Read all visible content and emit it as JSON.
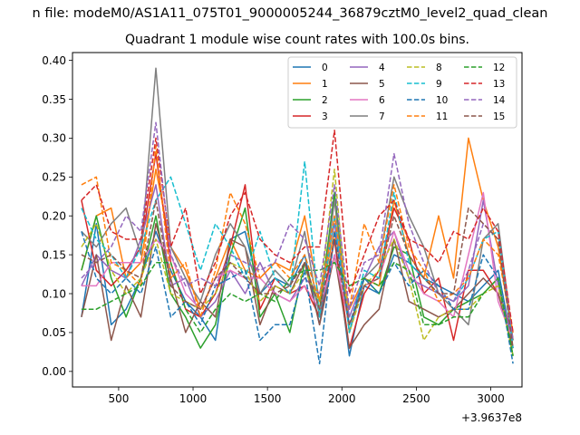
{
  "chart_data": {
    "type": "line",
    "suptitle": "n file: modeM0/AS1A11_075T01_9000005244_36879cztM0_level2_quad_clean",
    "title": "Quadrant 1 module wise count rates with 100.0s bins.",
    "xlabel": "",
    "ylabel": "",
    "x_offset_label": "+3.9637e8",
    "xlim": [
      190,
      3210
    ],
    "ylim": [
      -0.02,
      0.41
    ],
    "xticks": [
      500,
      1000,
      1500,
      2000,
      2500,
      3000
    ],
    "xtick_labels": [
      "500",
      "1000",
      "1500",
      "2000",
      "2500",
      "3000"
    ],
    "yticks": [
      0.0,
      0.05,
      0.1,
      0.15,
      0.2,
      0.25,
      0.3,
      0.35,
      0.4
    ],
    "ytick_labels": [
      "0.00",
      "0.05",
      "0.10",
      "0.15",
      "0.20",
      "0.25",
      "0.30",
      "0.35",
      "0.40"
    ],
    "legend_position": "top-right",
    "legend_ncol": 4,
    "x": [
      250,
      350,
      450,
      550,
      650,
      750,
      850,
      950,
      1050,
      1150,
      1250,
      1350,
      1450,
      1550,
      1650,
      1750,
      1850,
      1950,
      2050,
      2150,
      2250,
      2350,
      2450,
      2550,
      2650,
      2750,
      2850,
      2950,
      3050,
      3150
    ],
    "series": [
      {
        "name": "0",
        "color": "#1f77b4",
        "dash": "solid",
        "values": [
          0.07,
          0.19,
          0.06,
          0.08,
          0.12,
          0.18,
          0.13,
          0.09,
          0.07,
          0.04,
          0.17,
          0.18,
          0.1,
          0.12,
          0.11,
          0.15,
          0.06,
          0.17,
          0.02,
          0.11,
          0.1,
          0.15,
          0.14,
          0.12,
          0.11,
          0.1,
          0.09,
          0.11,
          0.13,
          0.03
        ]
      },
      {
        "name": "1",
        "color": "#ff7f0e",
        "dash": "solid",
        "values": [
          0.13,
          0.2,
          0.21,
          0.12,
          0.14,
          0.26,
          0.16,
          0.13,
          0.08,
          0.12,
          0.17,
          0.13,
          0.12,
          0.14,
          0.13,
          0.2,
          0.09,
          0.18,
          0.08,
          0.12,
          0.11,
          0.22,
          0.15,
          0.12,
          0.2,
          0.12,
          0.3,
          0.22,
          0.16,
          0.04
        ]
      },
      {
        "name": "2",
        "color": "#2ca02c",
        "dash": "solid",
        "values": [
          0.13,
          0.2,
          0.12,
          0.07,
          0.12,
          0.2,
          0.1,
          0.07,
          0.03,
          0.06,
          0.15,
          0.21,
          0.07,
          0.1,
          0.05,
          0.14,
          0.08,
          0.23,
          0.05,
          0.12,
          0.1,
          0.16,
          0.15,
          0.07,
          0.06,
          0.08,
          0.09,
          0.1,
          0.12,
          0.02
        ]
      },
      {
        "name": "3",
        "color": "#d62728",
        "dash": "solid",
        "values": [
          0.22,
          0.13,
          0.11,
          0.13,
          0.16,
          0.28,
          0.14,
          0.08,
          0.07,
          0.1,
          0.16,
          0.24,
          0.08,
          0.12,
          0.1,
          0.11,
          0.07,
          0.17,
          0.03,
          0.1,
          0.13,
          0.21,
          0.17,
          0.1,
          0.12,
          0.04,
          0.13,
          0.13,
          0.1,
          0.05
        ]
      },
      {
        "name": "4",
        "color": "#9467bd",
        "dash": "solid",
        "values": [
          0.11,
          0.15,
          0.13,
          0.12,
          0.17,
          0.24,
          0.11,
          0.12,
          0.07,
          0.09,
          0.13,
          0.1,
          0.14,
          0.1,
          0.09,
          0.12,
          0.1,
          0.19,
          0.07,
          0.12,
          0.16,
          0.18,
          0.12,
          0.11,
          0.1,
          0.09,
          0.11,
          0.22,
          0.11,
          0.04
        ]
      },
      {
        "name": "5",
        "color": "#8c564b",
        "dash": "solid",
        "values": [
          0.07,
          0.15,
          0.04,
          0.11,
          0.07,
          0.19,
          0.12,
          0.05,
          0.09,
          0.07,
          0.17,
          0.16,
          0.06,
          0.11,
          0.1,
          0.14,
          0.06,
          0.15,
          0.03,
          0.06,
          0.08,
          0.17,
          0.09,
          0.08,
          0.07,
          0.08,
          0.1,
          0.12,
          0.1,
          0.03
        ]
      },
      {
        "name": "6",
        "color": "#e377c2",
        "dash": "solid",
        "values": [
          0.11,
          0.11,
          0.14,
          0.14,
          0.14,
          0.17,
          0.15,
          0.1,
          0.08,
          0.12,
          0.13,
          0.12,
          0.12,
          0.1,
          0.09,
          0.11,
          0.08,
          0.15,
          0.06,
          0.11,
          0.12,
          0.18,
          0.13,
          0.1,
          0.09,
          0.07,
          0.15,
          0.23,
          0.09,
          0.04
        ]
      },
      {
        "name": "7",
        "color": "#7f7f7f",
        "dash": "solid",
        "values": [
          0.18,
          0.16,
          0.19,
          0.21,
          0.15,
          0.39,
          0.16,
          0.12,
          0.09,
          0.15,
          0.19,
          0.16,
          0.1,
          0.13,
          0.11,
          0.18,
          0.07,
          0.22,
          0.05,
          0.12,
          0.14,
          0.25,
          0.2,
          0.16,
          0.1,
          0.08,
          0.06,
          0.17,
          0.19,
          0.04
        ]
      },
      {
        "name": "8",
        "color": "#bcbd22",
        "dash": "dashed",
        "values": [
          0.16,
          0.19,
          0.13,
          0.1,
          0.12,
          0.17,
          0.1,
          0.09,
          0.08,
          0.1,
          0.14,
          0.13,
          0.09,
          0.11,
          0.1,
          0.13,
          0.09,
          0.26,
          0.05,
          0.11,
          0.13,
          0.17,
          0.12,
          0.04,
          0.07,
          0.08,
          0.08,
          0.1,
          0.11,
          0.02
        ]
      },
      {
        "name": "9",
        "color": "#17becf",
        "dash": "dashed",
        "values": [
          0.21,
          0.17,
          0.15,
          0.12,
          0.16,
          0.22,
          0.25,
          0.19,
          0.13,
          0.19,
          0.16,
          0.12,
          0.18,
          0.12,
          0.1,
          0.27,
          0.07,
          0.2,
          0.05,
          0.13,
          0.12,
          0.23,
          0.14,
          0.12,
          0.1,
          0.09,
          0.12,
          0.17,
          0.18,
          0.03
        ]
      },
      {
        "name": "10",
        "color": "#1f77b4",
        "dash": "dashed",
        "values": [
          0.18,
          0.12,
          0.1,
          0.12,
          0.1,
          0.16,
          0.07,
          0.09,
          0.06,
          0.11,
          0.12,
          0.13,
          0.04,
          0.06,
          0.06,
          0.13,
          0.01,
          0.18,
          0.06,
          0.12,
          0.1,
          0.14,
          0.11,
          0.13,
          0.11,
          0.08,
          0.08,
          0.15,
          0.12,
          0.01
        ]
      },
      {
        "name": "11",
        "color": "#ff7f0e",
        "dash": "dashed",
        "values": [
          0.24,
          0.25,
          0.14,
          0.13,
          0.11,
          0.29,
          0.12,
          0.14,
          0.07,
          0.13,
          0.23,
          0.19,
          0.12,
          0.14,
          0.12,
          0.15,
          0.09,
          0.2,
          0.08,
          0.19,
          0.14,
          0.24,
          0.16,
          0.13,
          0.09,
          0.1,
          0.12,
          0.17,
          0.15,
          0.05
        ]
      },
      {
        "name": "12",
        "color": "#2ca02c",
        "dash": "dashed",
        "values": [
          0.08,
          0.08,
          0.09,
          0.1,
          0.11,
          0.14,
          0.14,
          0.08,
          0.05,
          0.08,
          0.1,
          0.09,
          0.1,
          0.09,
          0.12,
          0.13,
          0.13,
          0.14,
          0.11,
          0.12,
          0.11,
          0.14,
          0.13,
          0.06,
          0.06,
          0.07,
          0.07,
          0.1,
          0.12,
          0.02
        ]
      },
      {
        "name": "13",
        "color": "#d62728",
        "dash": "dashed",
        "values": [
          0.22,
          0.24,
          0.18,
          0.17,
          0.17,
          0.3,
          0.16,
          0.21,
          0.1,
          0.14,
          0.2,
          0.23,
          0.17,
          0.15,
          0.14,
          0.16,
          0.16,
          0.31,
          0.1,
          0.15,
          0.2,
          0.22,
          0.17,
          0.16,
          0.14,
          0.18,
          0.17,
          0.21,
          0.18,
          0.05
        ]
      },
      {
        "name": "14",
        "color": "#9467bd",
        "dash": "dashed",
        "values": [
          0.12,
          0.14,
          0.16,
          0.2,
          0.18,
          0.32,
          0.15,
          0.11,
          0.12,
          0.11,
          0.15,
          0.14,
          0.13,
          0.14,
          0.19,
          0.17,
          0.11,
          0.24,
          0.08,
          0.14,
          0.15,
          0.28,
          0.19,
          0.14,
          0.1,
          0.09,
          0.13,
          0.19,
          0.17,
          0.04
        ]
      },
      {
        "name": "15",
        "color": "#8c564b",
        "dash": "dashed",
        "values": [
          0.15,
          0.14,
          0.15,
          0.13,
          0.12,
          0.22,
          0.11,
          0.09,
          0.08,
          0.12,
          0.14,
          0.12,
          0.1,
          0.1,
          0.11,
          0.14,
          0.08,
          0.17,
          0.06,
          0.11,
          0.12,
          0.2,
          0.15,
          0.12,
          0.1,
          0.1,
          0.21,
          0.19,
          0.17,
          0.03
        ]
      }
    ]
  }
}
